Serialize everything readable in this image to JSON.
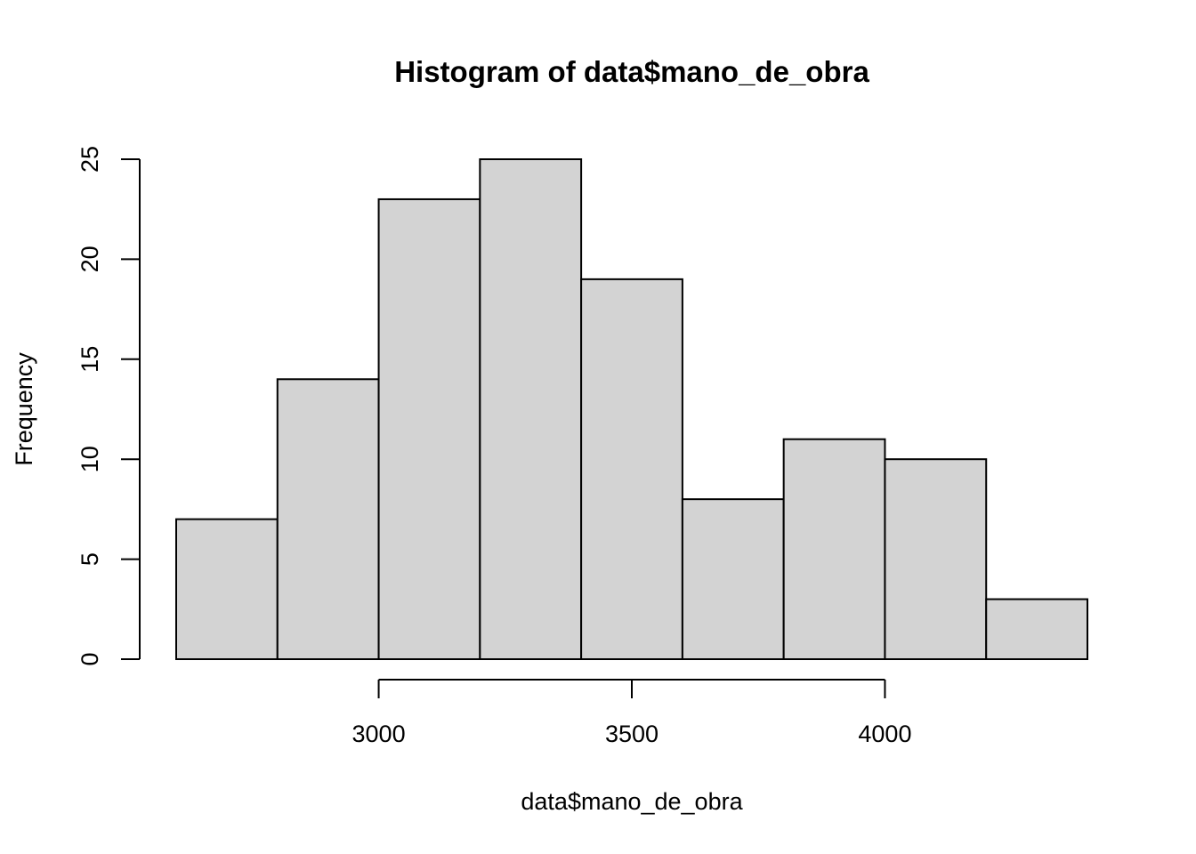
{
  "chart_data": {
    "type": "bar",
    "title": "Histogram of data$mano_de_obra",
    "xlabel": "data$mano_de_obra",
    "ylabel": "Frequency",
    "bins": [
      {
        "start": 2600,
        "end": 2800,
        "count": 7
      },
      {
        "start": 2800,
        "end": 3000,
        "count": 14
      },
      {
        "start": 3000,
        "end": 3200,
        "count": 23
      },
      {
        "start": 3200,
        "end": 3400,
        "count": 25
      },
      {
        "start": 3400,
        "end": 3600,
        "count": 19
      },
      {
        "start": 3600,
        "end": 3800,
        "count": 8
      },
      {
        "start": 3800,
        "end": 4000,
        "count": 11
      },
      {
        "start": 4000,
        "end": 4200,
        "count": 10
      },
      {
        "start": 4200,
        "end": 4400,
        "count": 3
      }
    ],
    "x_ticks": [
      3000,
      3500,
      4000
    ],
    "y_ticks": [
      0,
      5,
      10,
      15,
      20,
      25
    ],
    "xlim": [
      2600,
      4400
    ],
    "ylim": [
      0,
      25
    ],
    "bar_color": "#d3d3d3",
    "grid": false
  }
}
